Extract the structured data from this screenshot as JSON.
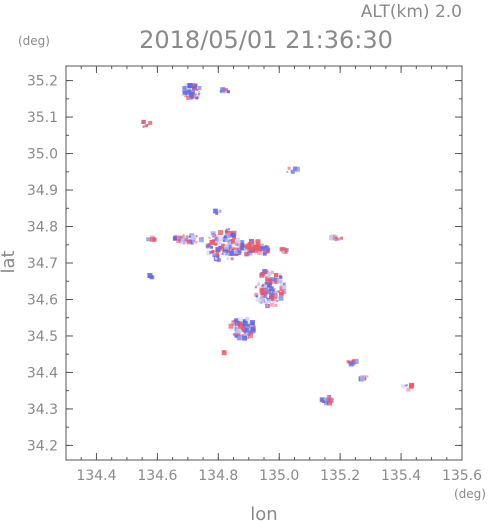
{
  "chart_data": {
    "type": "scatter",
    "title": "2018/05/01 21:36:30",
    "subtitle": "ALT(km) 2.0",
    "xlabel": "lon",
    "ylabel": "lat",
    "x_unit": "(deg)",
    "y_unit": "(deg)",
    "xlim": [
      134.3,
      135.6
    ],
    "ylim": [
      34.16,
      35.24
    ],
    "x_ticks": [
      134.4,
      134.6,
      134.8,
      135.0,
      135.2,
      135.4,
      135.6
    ],
    "x_tick_labels": [
      "134.4",
      "134.6",
      "134.8",
      "135.0",
      "135.2",
      "135.4",
      "135.6"
    ],
    "y_ticks": [
      34.2,
      34.3,
      34.4,
      34.5,
      34.6,
      34.7,
      34.8,
      34.9,
      35.0,
      35.1,
      35.2
    ],
    "y_tick_labels": [
      "34.2",
      "34.3",
      "34.4",
      "34.5",
      "34.6",
      "34.7",
      "34.8",
      "34.9",
      "35.0",
      "35.1",
      "35.2"
    ],
    "grid": false,
    "colors": {
      "positive": "#ee5a6a",
      "negative": "#5a6ae8",
      "neutral": "#c8c8f0"
    },
    "clusters": [
      {
        "lon": 134.72,
        "lat": 35.17,
        "rx": 0.035,
        "ry": 0.022,
        "n": 38
      },
      {
        "lon": 134.82,
        "lat": 35.17,
        "rx": 0.015,
        "ry": 0.006,
        "n": 8
      },
      {
        "lon": 134.56,
        "lat": 35.08,
        "rx": 0.02,
        "ry": 0.008,
        "n": 6
      },
      {
        "lon": 135.04,
        "lat": 34.955,
        "rx": 0.02,
        "ry": 0.008,
        "n": 7
      },
      {
        "lon": 134.58,
        "lat": 34.765,
        "rx": 0.012,
        "ry": 0.006,
        "n": 6
      },
      {
        "lon": 134.7,
        "lat": 34.765,
        "rx": 0.05,
        "ry": 0.012,
        "n": 40
      },
      {
        "lon": 134.82,
        "lat": 34.75,
        "rx": 0.06,
        "ry": 0.045,
        "n": 110
      },
      {
        "lon": 134.92,
        "lat": 34.74,
        "rx": 0.05,
        "ry": 0.02,
        "n": 55
      },
      {
        "lon": 135.02,
        "lat": 34.735,
        "rx": 0.015,
        "ry": 0.006,
        "n": 6
      },
      {
        "lon": 134.58,
        "lat": 34.665,
        "rx": 0.008,
        "ry": 0.005,
        "n": 4
      },
      {
        "lon": 134.97,
        "lat": 34.63,
        "rx": 0.05,
        "ry": 0.05,
        "n": 110
      },
      {
        "lon": 134.88,
        "lat": 34.52,
        "rx": 0.04,
        "ry": 0.03,
        "n": 70
      },
      {
        "lon": 135.18,
        "lat": 34.77,
        "rx": 0.03,
        "ry": 0.008,
        "n": 8
      },
      {
        "lon": 135.24,
        "lat": 34.43,
        "rx": 0.015,
        "ry": 0.008,
        "n": 7
      },
      {
        "lon": 135.16,
        "lat": 34.325,
        "rx": 0.02,
        "ry": 0.01,
        "n": 16
      },
      {
        "lon": 135.28,
        "lat": 34.385,
        "rx": 0.015,
        "ry": 0.006,
        "n": 6
      },
      {
        "lon": 135.42,
        "lat": 34.36,
        "rx": 0.02,
        "ry": 0.008,
        "n": 8
      },
      {
        "lon": 134.82,
        "lat": 34.455,
        "rx": 0.004,
        "ry": 0.004,
        "n": 2
      },
      {
        "lon": 134.8,
        "lat": 34.84,
        "rx": 0.01,
        "ry": 0.008,
        "n": 5
      }
    ]
  }
}
